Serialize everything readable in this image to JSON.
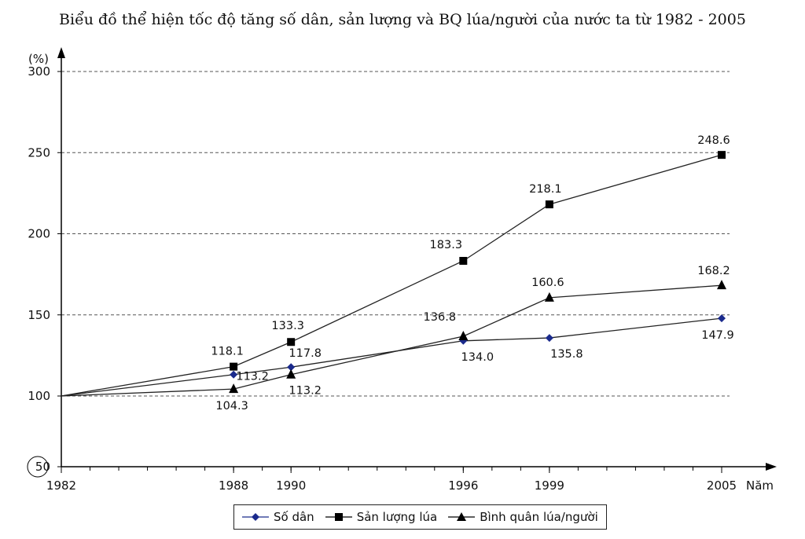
{
  "chart_data": {
    "type": "line",
    "title": "Biểu đồ thể hiện tốc độ tăng số dân, sản lượng và BQ lúa/người của nước ta từ 1982 - 2005",
    "ylabel": "(%)",
    "xlabel": "Năm",
    "x": [
      1982,
      1988,
      1990,
      1996,
      1999,
      2005
    ],
    "x_tick_labels": [
      "1982",
      "1988",
      "1990",
      "1996",
      "1999",
      "2005"
    ],
    "y_ticks": [
      50,
      100,
      150,
      200,
      250,
      300
    ],
    "y_tick_labels": [
      "50",
      "100",
      "150",
      "200",
      "250",
      "300"
    ],
    "ylim": [
      50,
      320
    ],
    "xlim": [
      1982,
      2005
    ],
    "grid": "dashed horizontal at 100-300",
    "legend_position": "bottom-center",
    "series": [
      {
        "name": "Số dân",
        "marker": "diamond",
        "color": "#1a2a8c",
        "values": [
          100,
          113.2,
          117.8,
          134.0,
          135.8,
          147.9
        ],
        "labels": [
          "",
          "113.2",
          "117.8",
          "134.0",
          "135.8",
          "147.9"
        ]
      },
      {
        "name": "Sản lượng lúa",
        "marker": "square",
        "color": "#000000",
        "values": [
          100,
          118.1,
          133.3,
          183.3,
          218.1,
          248.6
        ],
        "labels": [
          "",
          "118.1",
          "133.3",
          "183.3",
          "218.1",
          "248.6"
        ]
      },
      {
        "name": "Bình quân lúa/người",
        "marker": "triangle",
        "color": "#000000",
        "values": [
          100,
          104.3,
          113.2,
          136.8,
          160.6,
          168.2
        ],
        "labels": [
          "",
          "104.3",
          "113.2",
          "136.8",
          "160.6",
          "168.2"
        ]
      }
    ]
  }
}
